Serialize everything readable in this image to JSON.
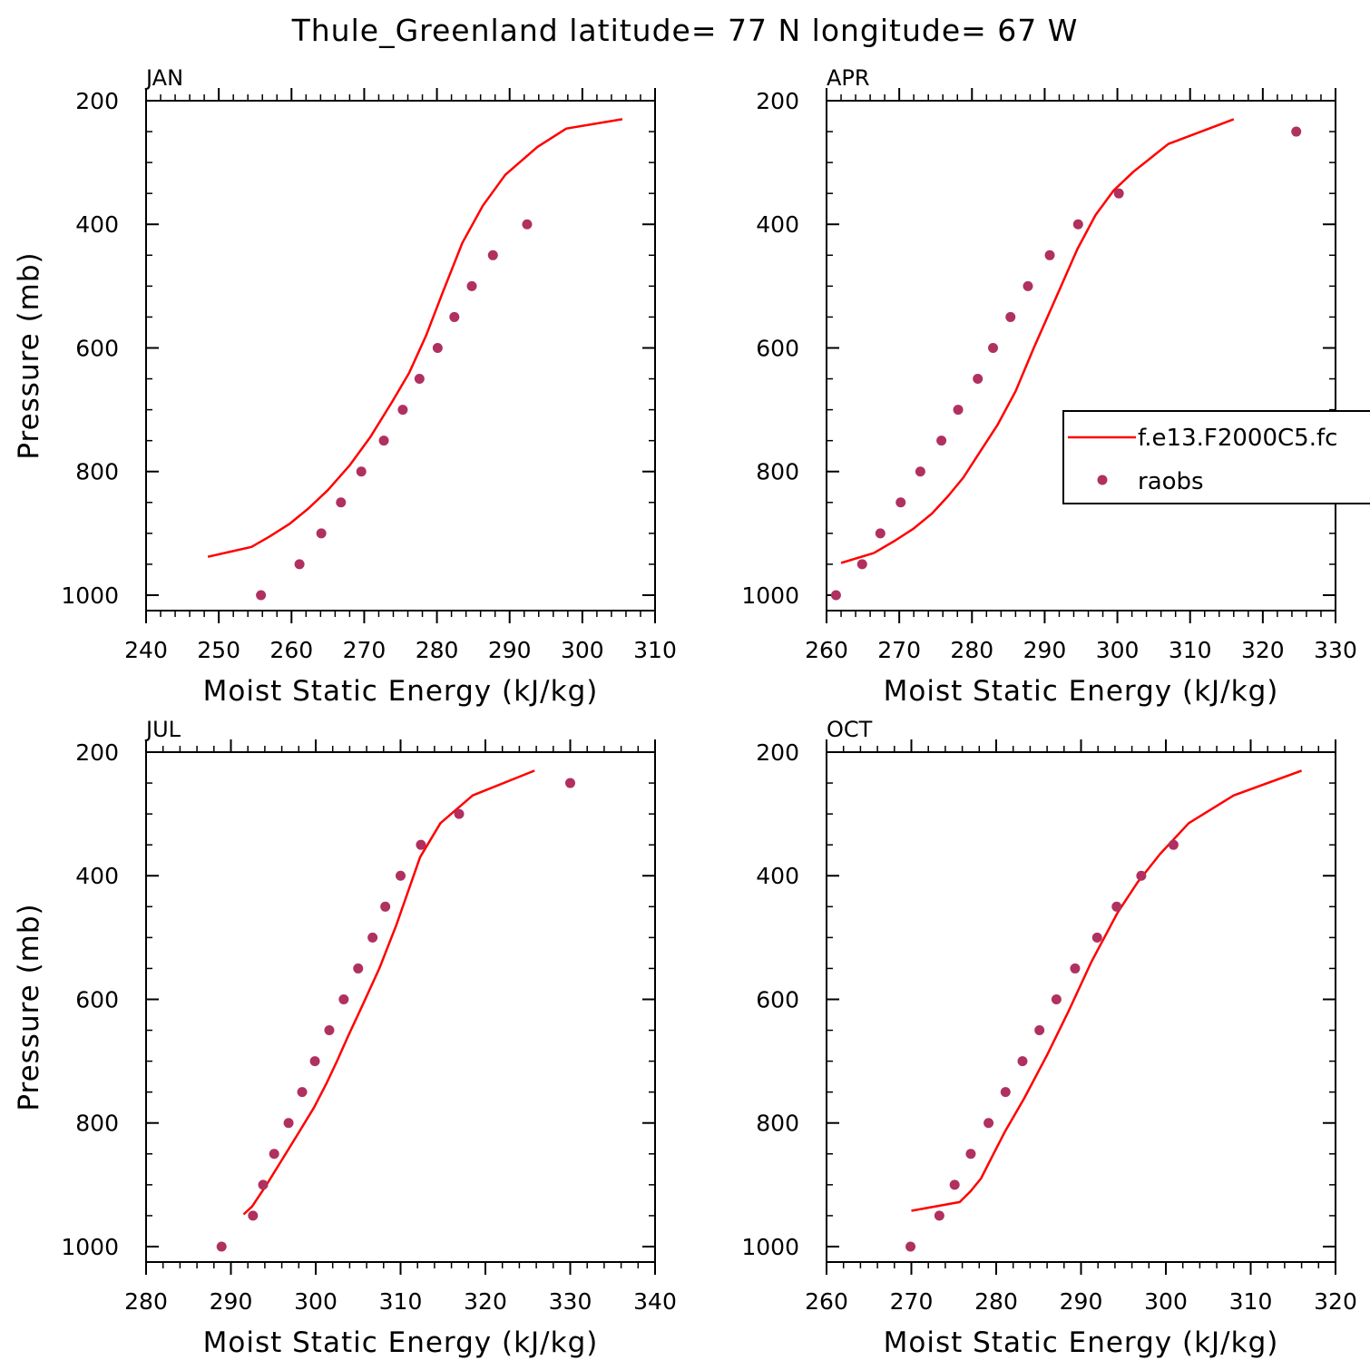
{
  "title": "Thule_Greenland  latitude= 77 N longitude= 67 W",
  "colors": {
    "model_line": "#ff0000",
    "obs_marker": "#b03060",
    "axes": "#000000"
  },
  "legend": {
    "panel": 1,
    "placement": "right",
    "entries": [
      {
        "label": "f.e13.F2000C5.fc",
        "style": "line"
      },
      {
        "label": "raobs",
        "style": "marker"
      }
    ]
  },
  "chart_data": [
    {
      "type": "line",
      "label": "JAN",
      "xlabel": "Moist Static Energy (kJ/kg)",
      "ylabel": "Pressure (mb)",
      "xlim": [
        240,
        310
      ],
      "ylim": [
        1025,
        200
      ],
      "xticks": [
        240,
        250,
        260,
        270,
        280,
        290,
        300,
        310
      ],
      "yticks": [
        200,
        400,
        600,
        800,
        1000
      ],
      "series": [
        {
          "style": "line",
          "x": [
            248.5,
            254.5,
            257,
            259.7,
            262.3,
            265,
            268,
            270.8,
            273.8,
            276.2,
            278.5,
            280.8,
            283.5,
            286.3,
            289.4,
            293.8,
            297.8,
            305.5
          ],
          "y": [
            938,
            922,
            905,
            885,
            860,
            830,
            790,
            745,
            688,
            640,
            580,
            510,
            430,
            370,
            320,
            275,
            245,
            230
          ]
        },
        {
          "style": "marker",
          "x": [
            255.8,
            261.1,
            264.1,
            266.8,
            269.6,
            272.7,
            275.3,
            277.6,
            280.1,
            282.4,
            284.8,
            287.7,
            292.4
          ],
          "y": [
            1000,
            950,
            900,
            850,
            800,
            750,
            700,
            650,
            600,
            550,
            500,
            450,
            400
          ]
        }
      ]
    },
    {
      "type": "line",
      "label": "APR",
      "xlabel": "Moist Static Energy (kJ/kg)",
      "ylabel": "",
      "xlim": [
        260,
        330
      ],
      "ylim": [
        1025,
        200
      ],
      "xticks": [
        260,
        270,
        280,
        290,
        300,
        310,
        320,
        330
      ],
      "yticks": [
        200,
        400,
        600,
        800,
        1000
      ],
      "series": [
        {
          "style": "line",
          "x": [
            262,
            266.5,
            269.4,
            272,
            274.5,
            276.7,
            278.8,
            281,
            283.5,
            286,
            288.5,
            291.5,
            294.5,
            297,
            299.5,
            302.2,
            307,
            316
          ],
          "y": [
            948,
            932,
            912,
            892,
            868,
            840,
            810,
            770,
            725,
            670,
            600,
            520,
            440,
            385,
            345,
            315,
            270,
            230
          ]
        },
        {
          "style": "marker",
          "x": [
            261.3,
            264.9,
            267.4,
            270.2,
            272.9,
            275.8,
            278.1,
            280.8,
            282.9,
            285.3,
            287.7,
            290.7,
            294.6,
            300.2,
            324.6
          ],
          "y": [
            1000,
            950,
            900,
            850,
            800,
            750,
            700,
            650,
            600,
            550,
            500,
            450,
            400,
            350,
            250
          ]
        }
      ]
    },
    {
      "type": "line",
      "label": "JUL",
      "xlabel": "Moist Static Energy (kJ/kg)",
      "ylabel": "Pressure (mb)",
      "xlim": [
        280,
        340
      ],
      "ylim": [
        1025,
        200
      ],
      "xticks": [
        280,
        290,
        300,
        310,
        320,
        330,
        340
      ],
      "yticks": [
        200,
        400,
        600,
        800,
        1000
      ],
      "series": [
        {
          "style": "line",
          "x": [
            291.5,
            292.5,
            294.2,
            296,
            297.8,
            299.8,
            301.3,
            302.5,
            303.8,
            305.5,
            307.5,
            309.5,
            312.3,
            314.7,
            318.5,
            325.8
          ],
          "y": [
            948,
            935,
            900,
            860,
            820,
            775,
            735,
            700,
            660,
            610,
            550,
            480,
            370,
            315,
            270,
            230
          ]
        },
        {
          "style": "marker",
          "x": [
            288.9,
            292.6,
            293.8,
            295.1,
            296.8,
            298.4,
            299.9,
            301.6,
            303.3,
            305,
            306.7,
            308.2,
            310,
            312.4,
            316.9,
            330
          ],
          "y": [
            1000,
            950,
            900,
            850,
            800,
            750,
            700,
            650,
            600,
            550,
            500,
            450,
            400,
            350,
            300,
            250
          ]
        }
      ]
    },
    {
      "type": "line",
      "label": "OCT",
      "xlabel": "Moist Static Energy (kJ/kg)",
      "ylabel": "",
      "xlim": [
        260,
        320
      ],
      "ylim": [
        1025,
        200
      ],
      "xticks": [
        260,
        270,
        280,
        290,
        300,
        310,
        320
      ],
      "yticks": [
        200,
        400,
        600,
        800,
        1000
      ],
      "series": [
        {
          "style": "line",
          "x": [
            270,
            275.7,
            277,
            278.2,
            279.5,
            281,
            283.3,
            286,
            288.5,
            291.2,
            294.3,
            296.7,
            299.3,
            302.7,
            308,
            316
          ],
          "y": [
            942,
            928,
            910,
            890,
            855,
            815,
            760,
            690,
            620,
            540,
            460,
            410,
            365,
            315,
            270,
            230
          ]
        },
        {
          "style": "marker",
          "x": [
            269.9,
            273.3,
            275.1,
            277,
            279.1,
            281.1,
            283.1,
            285.1,
            287.1,
            289.3,
            291.9,
            294.2,
            297.1,
            300.9
          ],
          "y": [
            1000,
            950,
            900,
            850,
            800,
            750,
            700,
            650,
            600,
            550,
            500,
            450,
            400,
            350
          ]
        }
      ]
    }
  ]
}
